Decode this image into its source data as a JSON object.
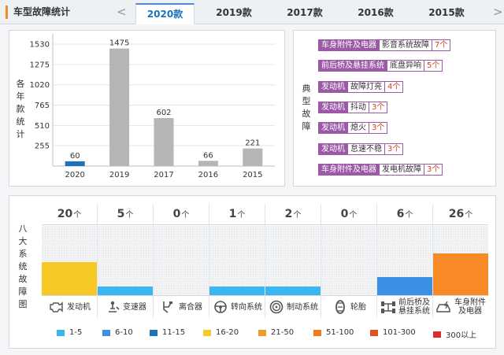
{
  "header": {
    "title": "车型故障统计",
    "prev": "<",
    "next": ">",
    "tabs": [
      {
        "label": "2020款",
        "active": true
      },
      {
        "label": "2019款",
        "active": false
      },
      {
        "label": "2017款",
        "active": false
      },
      {
        "label": "2016款",
        "active": false
      },
      {
        "label": "2015款",
        "active": false
      }
    ]
  },
  "yearly_panel": {
    "side_label": "各年款统计"
  },
  "chart_data": {
    "type": "bar",
    "categories": [
      "2020",
      "2019",
      "2017",
      "2016",
      "2015"
    ],
    "values": [
      60,
      1475,
      602,
      66,
      221
    ],
    "value_labels": [
      "60",
      "1475",
      "602",
      "66",
      "221"
    ],
    "highlight_index": 0,
    "yticks": [
      "1530",
      "1275",
      "1020",
      "765",
      "510",
      "255"
    ],
    "ytick_values": [
      1530,
      1275,
      1020,
      765,
      510,
      255
    ],
    "ylim": [
      0,
      1600
    ],
    "colors": {
      "bar": "#b5b5b5",
      "highlight": "#1e73b8"
    }
  },
  "typical_panel": {
    "side_label": "典型故障",
    "faults": [
      {
        "category": "车身附件及电器",
        "desc": "影音系统故障",
        "count": "7个"
      },
      {
        "category": "前后桥及悬挂系统",
        "desc": "底盘异响",
        "count": "5个"
      },
      {
        "category": "发动机",
        "desc": "故障灯亮",
        "count": "4个"
      },
      {
        "category": "发动机",
        "desc": "抖动",
        "count": "3个"
      },
      {
        "category": "发动机",
        "desc": "熄火",
        "count": "3个"
      },
      {
        "category": "发动机",
        "desc": "怠速不稳",
        "count": "3个"
      },
      {
        "category": "车身附件及电器",
        "desc": "发电机故障",
        "count": "3个"
      }
    ]
  },
  "systems_panel": {
    "side_label": "八大系统故障图",
    "unit": "个",
    "systems": [
      {
        "name": "发动机",
        "count": "20",
        "level": 0.48,
        "color": "#f7c926",
        "icon": "engine-icon"
      },
      {
        "name": "变速器",
        "count": "5",
        "level": 0.13,
        "color": "#3cb6f0",
        "icon": "gearbox-icon"
      },
      {
        "name": "离合器",
        "count": "0",
        "level": 0,
        "color": "#3cb6f0",
        "icon": "clutch-icon"
      },
      {
        "name": "转向系统",
        "count": "1",
        "level": 0.13,
        "color": "#3cb6f0",
        "icon": "steering-icon"
      },
      {
        "name": "制动系统",
        "count": "2",
        "level": 0.13,
        "color": "#3cb6f0",
        "icon": "brake-icon"
      },
      {
        "name": "轮胎",
        "count": "0",
        "level": 0,
        "color": "#3cb6f0",
        "icon": "tire-icon"
      },
      {
        "name_line1": "前后桥及",
        "name_line2": "悬挂系统",
        "count": "6",
        "level": 0.26,
        "color": "#3b8fe4",
        "icon": "axle-icon"
      },
      {
        "name_line1": "车身附件",
        "name_line2": "及电器",
        "count": "26",
        "level": 0.6,
        "color": "#f88a26",
        "icon": "body-electric-icon"
      }
    ],
    "legend": [
      {
        "label": "1-5",
        "color": "#3cb6f0"
      },
      {
        "label": "6-10",
        "color": "#3b8fe4"
      },
      {
        "label": "11-15",
        "color": "#1e73b8"
      },
      {
        "label": "16-20",
        "color": "#f7c926"
      },
      {
        "label": "21-50",
        "color": "#f39a2b"
      },
      {
        "label": "51-100",
        "color": "#f47a22"
      },
      {
        "label": "101-300",
        "color": "#e2521d"
      },
      {
        "label": "300以上",
        "color": "#e02c2c"
      }
    ]
  }
}
